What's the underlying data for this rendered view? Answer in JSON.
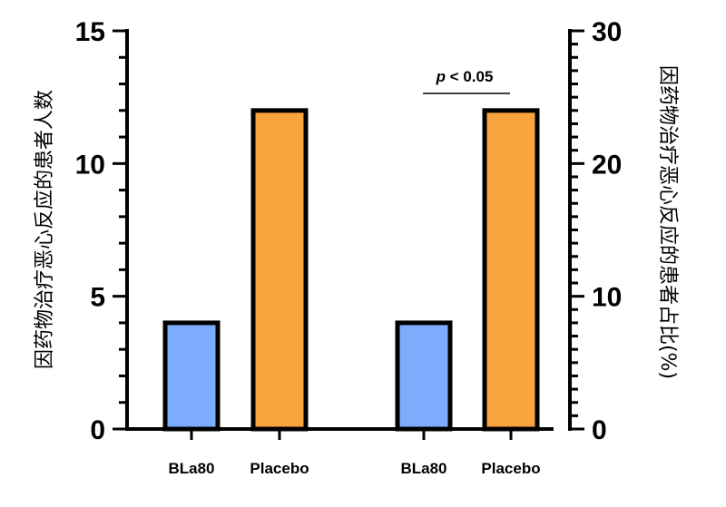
{
  "chart_data": {
    "type": "bar",
    "left_axis": {
      "title": "因药物治疗恶心反应的患者人数",
      "ylim": [
        0,
        15
      ],
      "ticks": [
        0,
        5,
        10,
        15
      ]
    },
    "right_axis": {
      "title": "因药物治疗恶心反应的患者占比(%)",
      "ylim": [
        0,
        30
      ],
      "ticks": [
        0,
        10,
        20,
        30
      ]
    },
    "groups": [
      {
        "axis": "left",
        "categories": [
          "BLa80",
          "Placebo"
        ],
        "values": [
          4,
          12
        ],
        "colors": [
          "#7fabff",
          "#f9a43e"
        ]
      },
      {
        "axis": "right",
        "categories": [
          "BLa80",
          "Placebo"
        ],
        "values": [
          8,
          24
        ],
        "colors": [
          "#7fabff",
          "#f9a43e"
        ]
      }
    ],
    "annotation": {
      "p_symbol": "p",
      "text": " < 0.05"
    },
    "grid": false,
    "legend": "none"
  }
}
